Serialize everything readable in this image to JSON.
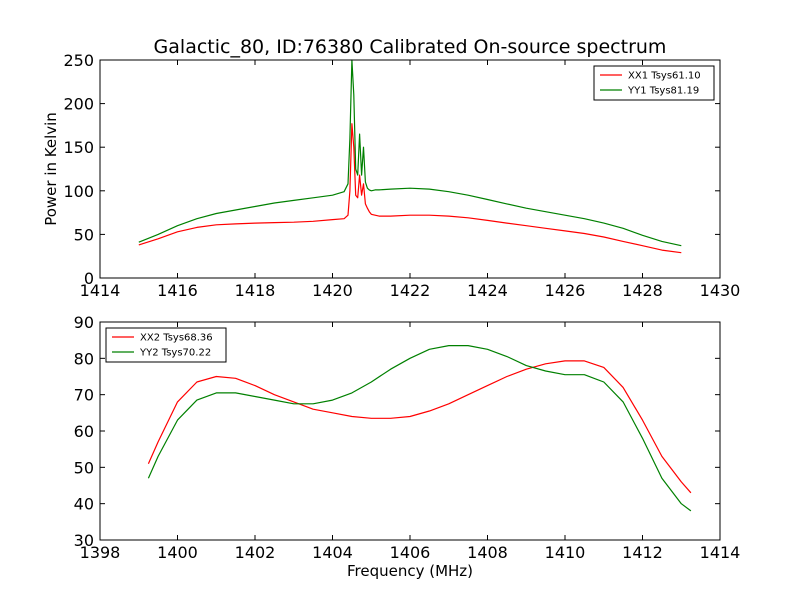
{
  "chart_data": [
    {
      "type": "line",
      "title": "Galactic_80, ID:76380 Calibrated On-source spectrum",
      "xlabel": "",
      "ylabel": "Power in Kelvin",
      "xlim": [
        1414,
        1430
      ],
      "ylim": [
        0,
        250
      ],
      "xticks": [
        1414,
        1416,
        1418,
        1420,
        1422,
        1424,
        1426,
        1428,
        1430
      ],
      "yticks": [
        0,
        50,
        100,
        150,
        200,
        250
      ],
      "legend_position": "top-right",
      "series": [
        {
          "name": "XX1 Tsys61.10",
          "color": "#ff0000",
          "x": [
            1415.0,
            1415.5,
            1416.0,
            1416.5,
            1417.0,
            1417.5,
            1418.0,
            1418.5,
            1419.0,
            1419.5,
            1420.0,
            1420.3,
            1420.4,
            1420.45,
            1420.5,
            1420.55,
            1420.6,
            1420.65,
            1420.7,
            1420.75,
            1420.8,
            1420.85,
            1420.9,
            1420.95,
            1421.0,
            1421.1,
            1421.2,
            1421.5,
            1422.0,
            1422.5,
            1423.0,
            1423.5,
            1424.0,
            1424.5,
            1425.0,
            1425.5,
            1426.0,
            1426.5,
            1427.0,
            1427.5,
            1428.0,
            1428.5,
            1429.0
          ],
          "y": [
            38,
            45,
            53,
            58,
            61,
            62,
            63,
            63.5,
            64,
            65,
            67,
            68,
            72,
            100,
            177,
            150,
            95,
            92,
            118,
            95,
            108,
            85,
            80,
            76,
            73,
            72,
            71,
            71,
            72,
            72,
            71,
            69,
            66,
            63,
            60,
            57,
            54,
            51,
            47,
            42,
            37,
            32,
            29
          ]
        },
        {
          "name": "YY1 Tsys81.19",
          "color": "#008000",
          "x": [
            1415.0,
            1415.5,
            1416.0,
            1416.5,
            1417.0,
            1417.5,
            1418.0,
            1418.5,
            1419.0,
            1419.5,
            1420.0,
            1420.3,
            1420.4,
            1420.45,
            1420.5,
            1420.55,
            1420.6,
            1420.65,
            1420.7,
            1420.75,
            1420.8,
            1420.85,
            1420.9,
            1420.95,
            1421.0,
            1421.1,
            1421.2,
            1421.5,
            1422.0,
            1422.5,
            1423.0,
            1423.5,
            1424.0,
            1424.5,
            1425.0,
            1425.5,
            1426.0,
            1426.5,
            1427.0,
            1427.5,
            1428.0,
            1428.5,
            1429.0
          ],
          "y": [
            41,
            50,
            60,
            68,
            74,
            78,
            82,
            86,
            89,
            92,
            95,
            99,
            108,
            160,
            250,
            210,
            125,
            118,
            165,
            118,
            150,
            110,
            103,
            101,
            100,
            101,
            101,
            102,
            103,
            102,
            99,
            95,
            90,
            85,
            80,
            76,
            72,
            68,
            63,
            57,
            49,
            42,
            37
          ]
        }
      ]
    },
    {
      "type": "line",
      "title": "",
      "xlabel": "Frequency (MHz)",
      "ylabel": "",
      "xlim": [
        1398,
        1414
      ],
      "ylim": [
        30,
        90
      ],
      "xticks": [
        1398,
        1400,
        1402,
        1404,
        1406,
        1408,
        1410,
        1412,
        1414
      ],
      "yticks": [
        30,
        40,
        50,
        60,
        70,
        80,
        90
      ],
      "legend_position": "top-left",
      "series": [
        {
          "name": "XX2 Tsys68.36",
          "color": "#ff0000",
          "x": [
            1399.25,
            1399.5,
            1400.0,
            1400.5,
            1401.0,
            1401.5,
            1402.0,
            1402.5,
            1403.0,
            1403.5,
            1404.0,
            1404.5,
            1405.0,
            1405.5,
            1406.0,
            1406.5,
            1407.0,
            1407.5,
            1408.0,
            1408.5,
            1409.0,
            1409.5,
            1410.0,
            1410.5,
            1411.0,
            1411.5,
            1412.0,
            1412.5,
            1413.0,
            1413.25
          ],
          "y": [
            51,
            57,
            68,
            73.5,
            75,
            74.5,
            72.5,
            70,
            68,
            66,
            65,
            64,
            63.5,
            63.5,
            64,
            65.5,
            67.5,
            70,
            72.5,
            75,
            77,
            78.5,
            79.3,
            79.3,
            77.5,
            72,
            63,
            53,
            46,
            43
          ]
        },
        {
          "name": "YY2 Tsys70.22",
          "color": "#008000",
          "x": [
            1399.25,
            1399.5,
            1400.0,
            1400.5,
            1401.0,
            1401.5,
            1402.0,
            1402.5,
            1403.0,
            1403.5,
            1404.0,
            1404.5,
            1405.0,
            1405.5,
            1406.0,
            1406.5,
            1407.0,
            1407.5,
            1408.0,
            1408.5,
            1409.0,
            1409.5,
            1410.0,
            1410.5,
            1411.0,
            1411.5,
            1412.0,
            1412.5,
            1413.0,
            1413.25
          ],
          "y": [
            47,
            53,
            63,
            68.5,
            70.5,
            70.5,
            69.5,
            68.5,
            67.5,
            67.5,
            68.5,
            70.5,
            73.5,
            77,
            80,
            82.5,
            83.5,
            83.5,
            82.5,
            80.5,
            78,
            76.5,
            75.5,
            75.5,
            73.5,
            68,
            58,
            47,
            40,
            38
          ]
        }
      ]
    }
  ]
}
